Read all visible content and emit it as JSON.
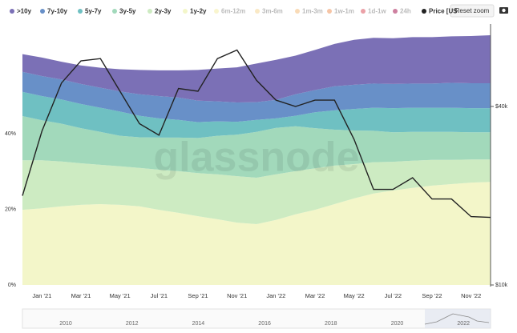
{
  "chart_data": {
    "type": "stacked_area",
    "categories": [
      null,
      "Jan '21",
      null,
      "Mar '21",
      null,
      "May '21",
      null,
      "Jul '21",
      null,
      "Sep '21",
      null,
      "Nov '21",
      null,
      "Jan '22",
      null,
      "Mar '22",
      null,
      "May '22",
      null,
      "Jul '22",
      null,
      "Sep '22",
      null,
      "Nov '22",
      null
    ],
    "series": [
      {
        "name": ">10y",
        "color": "#7b70b6",
        "visible": true,
        "values": [
          4.7,
          4.9,
          4.7,
          4.9,
          5.3,
          5.9,
          6.4,
          6.8,
          7.2,
          8.1,
          8.7,
          9.3,
          10.2,
          10.6,
          10.2,
          10.6,
          11.2,
          11.9,
          12.1,
          12.1,
          12.3,
          12.3,
          12.3,
          12.5,
          12.7
        ]
      },
      {
        "name": "7y-10y",
        "color": "#6890c8",
        "visible": true,
        "values": [
          5.3,
          5.3,
          5.3,
          5.3,
          5.3,
          5.3,
          5.7,
          5.9,
          5.9,
          5.7,
          5.3,
          5.1,
          4.7,
          4.9,
          5.7,
          5.9,
          6.4,
          6.4,
          6.4,
          6.4,
          6.4,
          6.4,
          6.6,
          6.6,
          6.6
        ]
      },
      {
        "name": "5y-7y",
        "color": "#6fc0c2",
        "visible": true,
        "values": [
          6.4,
          6.4,
          6.4,
          6.4,
          6.4,
          6.4,
          5.7,
          5.1,
          4.7,
          4.2,
          3.8,
          3.4,
          3.2,
          2.5,
          2.8,
          4.2,
          5.1,
          5.7,
          6.1,
          6.4,
          6.4,
          6.4,
          6.4,
          6.4,
          6.4
        ]
      },
      {
        "name": "3y-5y",
        "color": "#a2d9bb",
        "visible": true,
        "values": [
          11.7,
          10.6,
          10.0,
          9.3,
          8.7,
          8.1,
          8.1,
          8.5,
          8.9,
          9.3,
          10.2,
          11.0,
          12.1,
          12.3,
          11.9,
          10.6,
          9.5,
          8.9,
          8.3,
          7.8,
          7.6,
          7.4,
          7.4,
          7.2,
          7.2
        ]
      },
      {
        "name": "2y-3y",
        "color": "#cdebc2",
        "visible": true,
        "values": [
          13.1,
          12.7,
          11.9,
          11.0,
          10.4,
          10.2,
          10.2,
          10.6,
          11.0,
          11.4,
          11.9,
          12.3,
          12.3,
          12.1,
          11.4,
          11.0,
          10.2,
          9.1,
          8.3,
          7.6,
          7.2,
          6.8,
          6.4,
          6.1,
          5.9
        ]
      },
      {
        "name": "1y-2y",
        "color": "#f3f6c9",
        "visible": true,
        "values": [
          19.9,
          20.3,
          20.8,
          21.2,
          21.4,
          21.2,
          20.8,
          19.9,
          19.1,
          18.2,
          17.4,
          16.5,
          16.1,
          17.2,
          18.7,
          19.9,
          21.4,
          22.9,
          24.2,
          25.0,
          25.7,
          26.3,
          26.7,
          27.1,
          27.3
        ]
      },
      {
        "name": "6m-12m",
        "color": "#f4ec9e",
        "visible": false
      },
      {
        "name": "3m-6m",
        "color": "#f6d38c",
        "visible": false
      },
      {
        "name": "1m-3m",
        "color": "#f4b870",
        "visible": false
      },
      {
        "name": "1w-1m",
        "color": "#ee8c4e",
        "visible": false
      },
      {
        "name": "1d-1w",
        "color": "#d8434f",
        "visible": false
      },
      {
        "name": "24h",
        "color": "#9e0142",
        "visible": false
      },
      {
        "name": "Price [US",
        "color": "#222222",
        "visible": true,
        "axis": "y2",
        "values": [
          20000,
          33000,
          48000,
          57000,
          58000,
          45000,
          35000,
          32000,
          46000,
          45000,
          58000,
          62000,
          49000,
          42000,
          40000,
          42000,
          42000,
          31000,
          21000,
          21000,
          23000,
          19500,
          19500,
          17000,
          16900
        ]
      }
    ],
    "ylim": [
      0,
      67.8
    ],
    "yticks": [
      {
        "value": 0,
        "label": "0%"
      },
      {
        "value": 20,
        "label": "20%"
      },
      {
        "value": 40,
        "label": "40%"
      }
    ],
    "y2lim": [
      10000,
      73100
    ],
    "y2log": true,
    "y2ticks": [
      {
        "value": 10000,
        "label": "$10k"
      },
      {
        "value": 40000,
        "label": "$40k"
      }
    ],
    "reset_button": "Reset zoom",
    "watermark": "glassnode",
    "navigator_labels": [
      "2010",
      "2012",
      "2014",
      "2016",
      "2018",
      "2020",
      "2022"
    ]
  }
}
